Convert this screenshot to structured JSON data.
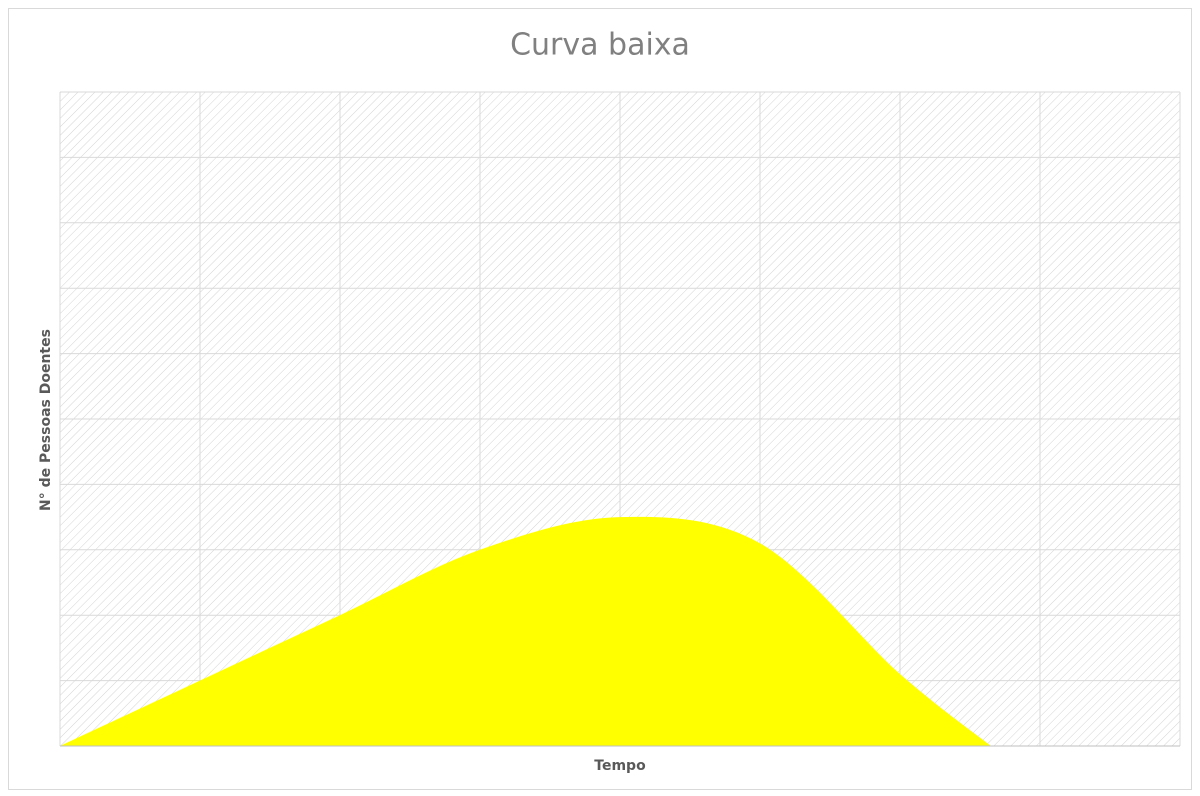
{
  "chart_data": {
    "type": "area",
    "title": "Curva baixa",
    "x_label": "Tempo",
    "y_label": "N° de Pessoas Doentes",
    "x": [
      0,
      1,
      2,
      3,
      4,
      5,
      6,
      6.65
    ],
    "series": [
      {
        "name": "Curva baixa",
        "color": "#ffff00",
        "values": [
          0,
          1,
          2,
          3,
          3.5,
          3.1,
          1.1,
          0
        ]
      }
    ],
    "xlim": [
      0,
      8
    ],
    "xticks": [
      0,
      1,
      2,
      3,
      4,
      5,
      6,
      7,
      8
    ],
    "ylim": [
      0,
      10
    ],
    "yticks": [
      0,
      1,
      2,
      3,
      4,
      5,
      6,
      7,
      8,
      9,
      10
    ],
    "grid": true
  }
}
